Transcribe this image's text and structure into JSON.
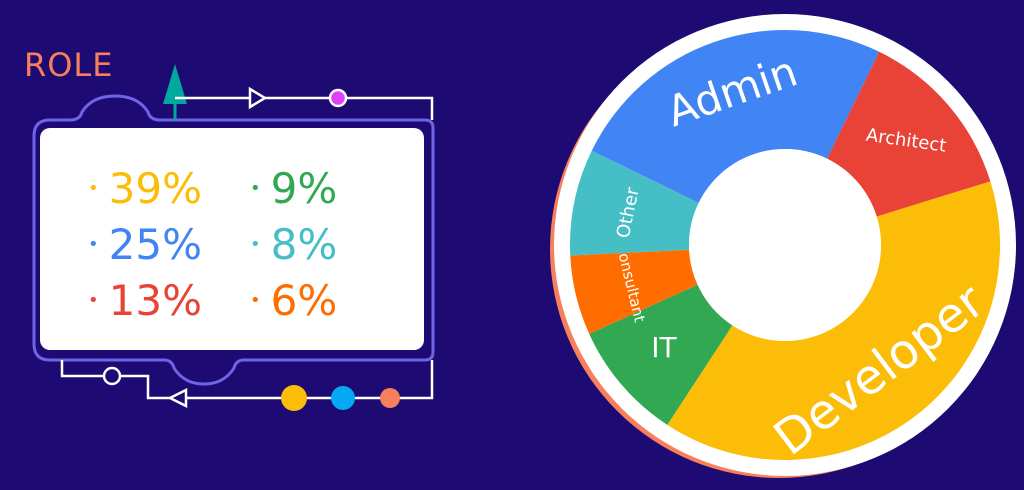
{
  "role_title": "ROLE",
  "chart_data": {
    "type": "pie",
    "title": "",
    "series": [
      {
        "label": "Developer",
        "value": 39,
        "display": "39%",
        "color": "#fbbd07"
      },
      {
        "label": "Admin",
        "value": 25,
        "display": "25%",
        "color": "#4185f4"
      },
      {
        "label": "Architect",
        "value": 13,
        "display": "13%",
        "color": "#e94236"
      },
      {
        "label": "IT",
        "value": 9,
        "display": "9%",
        "color": "#33a853"
      },
      {
        "label": "Other",
        "value": 8,
        "display": "8%",
        "color": "#46bec6"
      },
      {
        "label": "Consultant",
        "value": 6,
        "display": "6%",
        "color": "#ff6d00"
      }
    ]
  },
  "decor_colors": {
    "background": "#1d0a73",
    "frame_line": "#6d64e6",
    "white_line": "#ffffff",
    "arrow_teal": "#00a99d",
    "magenta_node": "#e040fb",
    "pie_shadow": "#f77f5c",
    "dot_yellow": "#fbbd07",
    "dot_blue": "#03a9f4",
    "dot_coral": "#f77f5c"
  }
}
